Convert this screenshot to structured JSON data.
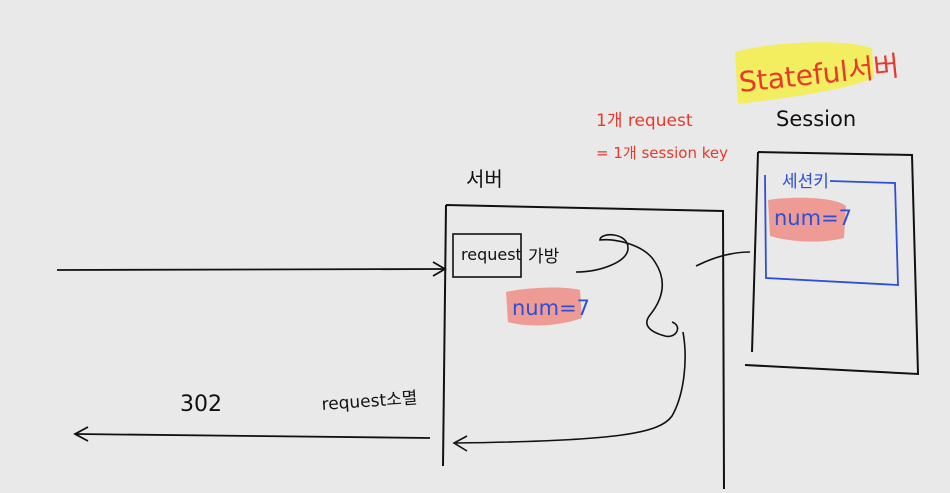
{
  "title": {
    "text": "Stateful서버",
    "highlight_color": "#f2ee58",
    "text_color": "#e8392c"
  },
  "annotation": {
    "line1": "1개 request",
    "line2": "= 1개 session key",
    "color": "#e8392c"
  },
  "server": {
    "label": "서버",
    "request_box": "request",
    "bag_label": "가방",
    "num_value": "num=7"
  },
  "session": {
    "label": "Session",
    "inner_label": "세션키",
    "num_value": "num=7",
    "blue_color": "#2d4fd6"
  },
  "response": {
    "status": "302",
    "note": "request소멸"
  },
  "colors": {
    "ink": "#111111",
    "pink_highlight": "#ef8d86"
  }
}
